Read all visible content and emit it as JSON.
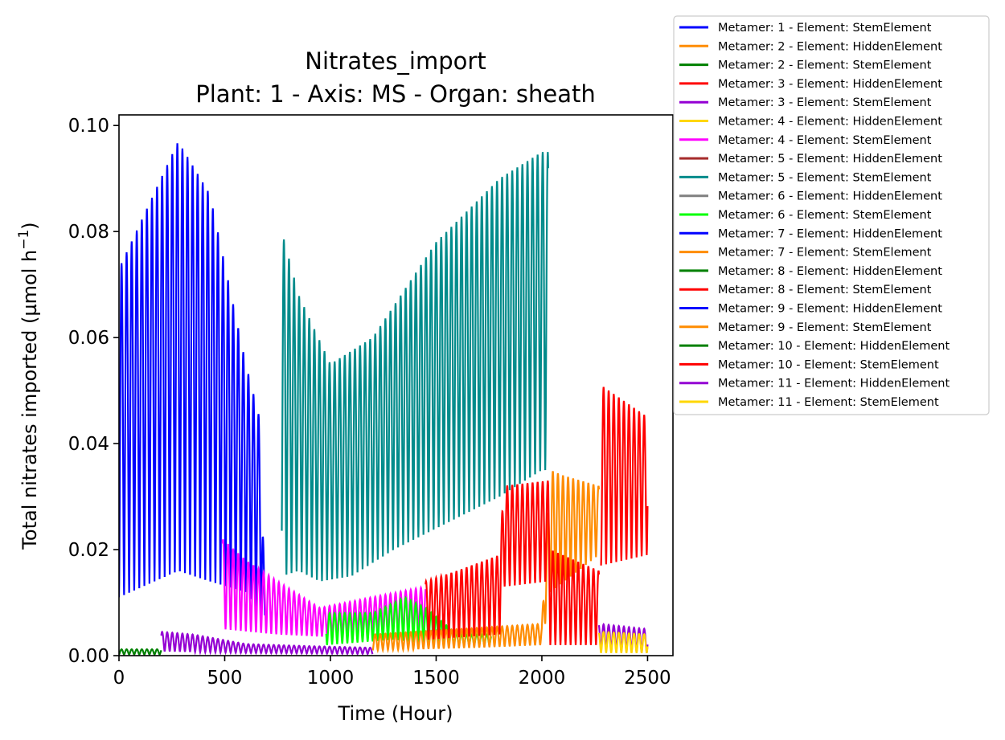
{
  "chart_data": {
    "type": "line",
    "title": "Nitrates_import",
    "subtitle": "Plant: 1 - Axis: MS - Organ: sheath",
    "xlabel": "Time (Hour)",
    "ylabel_main": "Total nitrates imported (µmol h",
    "ylabel_sup": "−1",
    "ylabel_close": ")",
    "xlim": [
      0,
      2620
    ],
    "ylim": [
      0,
      0.102
    ],
    "xticks": [
      0,
      500,
      1000,
      1500,
      2000,
      2500
    ],
    "xtick_labels": [
      "0",
      "500",
      "1000",
      "1500",
      "2000",
      "2500"
    ],
    "yticks": [
      0,
      0.02,
      0.04,
      0.06,
      0.08,
      0.1
    ],
    "ytick_labels": [
      "0.00",
      "0.02",
      "0.04",
      "0.06",
      "0.08",
      "0.10"
    ],
    "legend_position": "outside top-right",
    "series": [
      {
        "name": "Metamer: 1 - Element: StemElement",
        "color": "#0000ff",
        "start": 0,
        "end": 690,
        "hi": [
          [
            0,
            0.073
          ],
          [
            280,
            0.097
          ],
          [
            430,
            0.087
          ],
          [
            600,
            0.055
          ],
          [
            670,
            0.044
          ],
          [
            690,
            0.008
          ]
        ],
        "lo": [
          [
            0,
            0.011
          ],
          [
            280,
            0.016
          ],
          [
            430,
            0.014
          ],
          [
            600,
            0.012
          ],
          [
            690,
            0.007
          ]
        ]
      },
      {
        "name": "Metamer: 2 - Element: HiddenElement",
        "color": "#ff8c00",
        "start": 0,
        "end": 0,
        "hi": [],
        "lo": []
      },
      {
        "name": "Metamer: 2 - Element: StemElement",
        "color": "#008000",
        "start": 0,
        "end": 200,
        "hi": [
          [
            0,
            0.0012
          ],
          [
            200,
            0.0012
          ]
        ],
        "lo": [
          [
            0,
            0.0002
          ],
          [
            200,
            0.0002
          ]
        ]
      },
      {
        "name": "Metamer: 3 - Element: HiddenElement",
        "color": "#ff0000",
        "start": 0,
        "end": 0,
        "hi": [],
        "lo": []
      },
      {
        "name": "Metamer: 3 - Element: StemElement",
        "color": "#9400d3",
        "start": 200,
        "end": 1200,
        "hi": [
          [
            200,
            0.0045
          ],
          [
            350,
            0.004
          ],
          [
            600,
            0.0022
          ],
          [
            900,
            0.0018
          ],
          [
            1200,
            0.0015
          ]
        ],
        "lo": [
          [
            200,
            0.0008
          ],
          [
            600,
            0.0005
          ],
          [
            1200,
            0.0003
          ]
        ]
      },
      {
        "name": "Metamer: 4 - Element: HiddenElement",
        "color": "#ffd700",
        "start": 0,
        "end": 0,
        "hi": [],
        "lo": []
      },
      {
        "name": "Metamer: 4 - Element: StemElement",
        "color": "#ff00ff",
        "start": 490,
        "end": 1450,
        "hi": [
          [
            490,
            0.022
          ],
          [
            600,
            0.018
          ],
          [
            750,
            0.014
          ],
          [
            950,
            0.009
          ],
          [
            1200,
            0.011
          ],
          [
            1450,
            0.013
          ]
        ],
        "lo": [
          [
            490,
            0.005
          ],
          [
            750,
            0.004
          ],
          [
            1000,
            0.0035
          ],
          [
            1450,
            0.004
          ]
        ]
      },
      {
        "name": "Metamer: 5 - Element: HiddenElement",
        "color": "#a52a2a",
        "start": 0,
        "end": 0,
        "hi": [],
        "lo": []
      },
      {
        "name": "Metamer: 5 - Element: StemElement",
        "color": "#008b8b",
        "start": 770,
        "end": 2030,
        "hi": [
          [
            770,
            0.08
          ],
          [
            850,
            0.068
          ],
          [
            1000,
            0.055
          ],
          [
            1200,
            0.06
          ],
          [
            1500,
            0.078
          ],
          [
            1800,
            0.09
          ],
          [
            2000,
            0.095
          ]
        ],
        "lo": [
          [
            770,
            0.015
          ],
          [
            850,
            0.016
          ],
          [
            950,
            0.014
          ],
          [
            1100,
            0.015
          ],
          [
            1300,
            0.02
          ],
          [
            1600,
            0.026
          ],
          [
            1800,
            0.03
          ],
          [
            2000,
            0.035
          ]
        ]
      },
      {
        "name": "Metamer: 6 - Element: HiddenElement",
        "color": "#808080",
        "start": 0,
        "end": 0,
        "hi": [],
        "lo": []
      },
      {
        "name": "Metamer: 6 - Element: StemElement",
        "color": "#00ff00",
        "start": 980,
        "end": 1760,
        "hi": [
          [
            980,
            0.008
          ],
          [
            1200,
            0.008
          ],
          [
            1350,
            0.011
          ],
          [
            1450,
            0.009
          ],
          [
            1600,
            0.004
          ],
          [
            1760,
            0.004
          ]
        ],
        "lo": [
          [
            980,
            0.002
          ],
          [
            1300,
            0.003
          ],
          [
            1500,
            0.002
          ],
          [
            1760,
            0.002
          ]
        ]
      },
      {
        "name": "Metamer: 7 - Element: HiddenElement",
        "color": "#0000ff",
        "start": 0,
        "end": 0,
        "hi": [],
        "lo": []
      },
      {
        "name": "Metamer: 7 - Element: StemElement",
        "color": "#ff8c00",
        "start": 1200,
        "end": 2270,
        "hi": [
          [
            1200,
            0.004
          ],
          [
            1600,
            0.005
          ],
          [
            2000,
            0.006
          ],
          [
            2040,
            0.035
          ],
          [
            2100,
            0.034
          ],
          [
            2270,
            0.032
          ]
        ],
        "lo": [
          [
            1200,
            0.001
          ],
          [
            1700,
            0.0015
          ],
          [
            2000,
            0.002
          ],
          [
            2040,
            0.012
          ],
          [
            2270,
            0.019
          ]
        ]
      },
      {
        "name": "Metamer: 8 - Element: HiddenElement",
        "color": "#008000",
        "start": 0,
        "end": 0,
        "hi": [],
        "lo": []
      },
      {
        "name": "Metamer: 8 - Element: StemElement",
        "color": "#ff0000",
        "start": 1450,
        "end": 2270,
        "hi": [
          [
            1450,
            0.014
          ],
          [
            1600,
            0.016
          ],
          [
            1800,
            0.019
          ],
          [
            1820,
            0.032
          ],
          [
            2030,
            0.033
          ],
          [
            2040,
            0.02
          ],
          [
            2270,
            0.016
          ]
        ],
        "lo": [
          [
            1450,
            0.003
          ],
          [
            1800,
            0.004
          ],
          [
            1820,
            0.013
          ],
          [
            2030,
            0.014
          ],
          [
            2040,
            0.002
          ],
          [
            2270,
            0.002
          ]
        ]
      },
      {
        "name": "Metamer: 9 - Element: HiddenElement",
        "color": "#0000ff",
        "start": 0,
        "end": 0,
        "hi": [],
        "lo": []
      },
      {
        "name": "Metamer: 9 - Element: StemElement",
        "color": "#ff8c00",
        "start": 0,
        "end": 0,
        "hi": [],
        "lo": []
      },
      {
        "name": "Metamer: 10 - Element: HiddenElement",
        "color": "#008000",
        "start": 0,
        "end": 0,
        "hi": [],
        "lo": []
      },
      {
        "name": "Metamer: 10 - Element: StemElement",
        "color": "#ff0000",
        "start": 2280,
        "end": 2500,
        "hi": [
          [
            2280,
            0.051
          ],
          [
            2500,
            0.045
          ]
        ],
        "lo": [
          [
            2280,
            0.017
          ],
          [
            2500,
            0.019
          ]
        ]
      },
      {
        "name": "Metamer: 11 - Element: HiddenElement",
        "color": "#9400d3",
        "start": 2270,
        "end": 2500,
        "hi": [
          [
            2270,
            0.006
          ],
          [
            2500,
            0.005
          ]
        ],
        "lo": [
          [
            2270,
            0.001
          ],
          [
            2500,
            0.0005
          ]
        ]
      },
      {
        "name": "Metamer: 11 - Element: StemElement",
        "color": "#ffd700",
        "start": 2270,
        "end": 2500,
        "hi": [
          [
            2270,
            0.0045
          ],
          [
            2500,
            0.004
          ]
        ],
        "lo": [
          [
            2270,
            0.0005
          ],
          [
            2500,
            0.0005
          ]
        ]
      }
    ]
  }
}
